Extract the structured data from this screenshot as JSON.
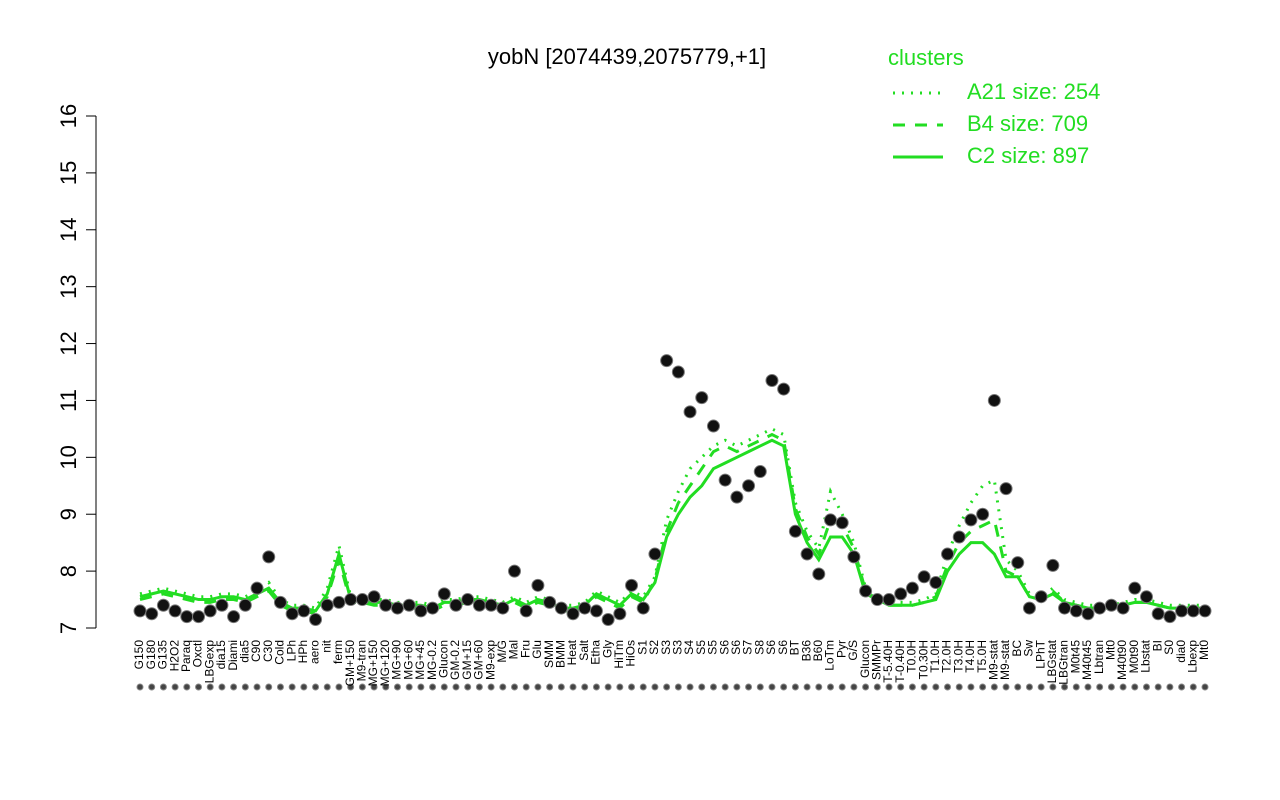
{
  "chart_data": {
    "type": "dotline",
    "title": "yobN [2074439,2075779,+1]",
    "legend_title": "clusters",
    "ylim": [
      7,
      16
    ],
    "yticks": [
      7,
      8,
      9,
      10,
      11,
      12,
      13,
      14,
      15,
      16
    ],
    "categories": [
      "G150",
      "G180",
      "G135",
      "H2O2",
      "Paraq",
      "Oxctl",
      "LBGexp",
      "dia15",
      "Diami",
      "dia5",
      "C90",
      "C30",
      "Cold",
      "LPh",
      "HPh",
      "aero",
      "nit",
      "ferm",
      "GM+150",
      "M9-tran",
      "MG+150",
      "MG+120",
      "MG+90",
      "MG+60",
      "MG+45",
      "MG-0.2",
      "Glucon",
      "GM-0.2",
      "GM+15",
      "GM+60",
      "M9-exp",
      "M/G",
      "Mal",
      "Fru",
      "Glu",
      "SMM",
      "BMM",
      "Heat",
      "Salt",
      "Etha",
      "Gly",
      "HiTm",
      "HiOs",
      "S1",
      "S2",
      "S3",
      "S3",
      "S4",
      "S5",
      "S5",
      "S6",
      "S6",
      "S7",
      "S8",
      "S6",
      "S6",
      "BT",
      "B36",
      "B60",
      "LoTm",
      "Pyr",
      "G/S",
      "Glucon",
      "SMMPr",
      "T-5.40H",
      "T-0.40H",
      "T0.0H",
      "T0.30H",
      "T1.0H",
      "T2.0H",
      "T3.0H",
      "T4.0H",
      "T5.0H",
      "M9-stat",
      "M9-stat",
      "BC",
      "Sw",
      "LPhT",
      "LBGstat",
      "LBGtran",
      "M0t45",
      "M40t45",
      "Lbtran",
      "Mt0",
      "M40t90",
      "M0t90",
      "Lbstat",
      "BI",
      "S0",
      "dia0",
      "Lbexp",
      "Mt0"
    ],
    "values": [
      7.3,
      7.25,
      7.4,
      7.3,
      7.2,
      7.2,
      7.3,
      7.4,
      7.2,
      7.4,
      7.7,
      8.25,
      7.45,
      7.25,
      7.3,
      7.15,
      7.4,
      7.45,
      7.5,
      7.5,
      7.55,
      7.4,
      7.35,
      7.4,
      7.3,
      7.35,
      7.6,
      7.4,
      7.5,
      7.4,
      7.4,
      7.35,
      8.0,
      7.3,
      7.75,
      7.45,
      7.35,
      7.25,
      7.35,
      7.3,
      7.15,
      7.25,
      7.75,
      7.35,
      8.3,
      11.7,
      11.5,
      10.8,
      11.05,
      10.55,
      9.6,
      9.3,
      9.5,
      9.75,
      11.35,
      11.2,
      8.7,
      8.3,
      7.95,
      8.9,
      8.85,
      8.25,
      7.65,
      7.5,
      7.5,
      7.6,
      7.7,
      7.9,
      7.8,
      8.3,
      8.6,
      8.9,
      9.0,
      11.0,
      9.45,
      8.15,
      7.35,
      7.55,
      8.1,
      7.35,
      7.3,
      7.25,
      7.35,
      7.4,
      7.35,
      7.7,
      7.55,
      7.25,
      7.2,
      7.3,
      7.3,
      7.3
    ],
    "point_color": "#111111",
    "series": [
      {
        "name": "A21 size: 254",
        "color": "#22dd22",
        "dash": "dotted",
        "values": [
          7.6,
          7.65,
          7.7,
          7.65,
          7.6,
          7.55,
          7.55,
          7.6,
          7.6,
          7.55,
          7.65,
          7.8,
          7.5,
          7.4,
          7.4,
          7.35,
          7.7,
          8.45,
          7.55,
          7.55,
          7.5,
          7.5,
          7.45,
          7.45,
          7.45,
          7.4,
          7.5,
          7.5,
          7.55,
          7.55,
          7.5,
          7.45,
          7.55,
          7.45,
          7.55,
          7.5,
          7.4,
          7.4,
          7.45,
          7.65,
          7.55,
          7.45,
          7.65,
          7.55,
          7.9,
          8.9,
          9.4,
          9.8,
          10.0,
          10.2,
          10.3,
          10.2,
          10.3,
          10.4,
          10.5,
          10.4,
          9.2,
          8.7,
          8.4,
          9.4,
          9.0,
          8.5,
          7.7,
          7.55,
          7.45,
          7.45,
          7.45,
          7.5,
          7.6,
          8.3,
          8.8,
          9.2,
          9.5,
          9.6,
          8.2,
          8.0,
          7.6,
          7.55,
          7.7,
          7.5,
          7.45,
          7.4,
          7.4,
          7.4,
          7.45,
          7.5,
          7.5,
          7.45,
          7.4,
          7.4,
          7.4,
          7.4
        ]
      },
      {
        "name": "B4 size: 709",
        "color": "#22dd22",
        "dash": "dashed",
        "values": [
          7.5,
          7.55,
          7.6,
          7.55,
          7.5,
          7.45,
          7.45,
          7.5,
          7.5,
          7.45,
          7.55,
          7.65,
          7.4,
          7.3,
          7.3,
          7.25,
          7.55,
          8.2,
          7.45,
          7.45,
          7.4,
          7.4,
          7.35,
          7.35,
          7.35,
          7.3,
          7.4,
          7.4,
          7.45,
          7.45,
          7.4,
          7.35,
          7.45,
          7.35,
          7.45,
          7.4,
          7.3,
          7.3,
          7.35,
          7.55,
          7.45,
          7.35,
          7.55,
          7.45,
          7.85,
          8.7,
          9.2,
          9.5,
          9.8,
          10.1,
          10.2,
          10.1,
          10.2,
          10.3,
          10.4,
          10.3,
          9.1,
          8.6,
          8.3,
          8.9,
          8.8,
          8.4,
          7.65,
          7.5,
          7.4,
          7.4,
          7.4,
          7.45,
          7.55,
          8.1,
          8.5,
          8.7,
          8.8,
          8.9,
          8.0,
          7.9,
          7.55,
          7.5,
          7.65,
          7.45,
          7.4,
          7.35,
          7.35,
          7.35,
          7.4,
          7.45,
          7.45,
          7.4,
          7.35,
          7.35,
          7.35,
          7.35
        ]
      },
      {
        "name": "C2 size: 897",
        "color": "#22dd22",
        "dash": "solid",
        "values": [
          7.55,
          7.6,
          7.65,
          7.6,
          7.55,
          7.5,
          7.5,
          7.55,
          7.55,
          7.5,
          7.6,
          7.7,
          7.45,
          7.35,
          7.35,
          7.3,
          7.6,
          8.3,
          7.5,
          7.5,
          7.45,
          7.45,
          7.4,
          7.4,
          7.4,
          7.35,
          7.45,
          7.45,
          7.5,
          7.5,
          7.45,
          7.4,
          7.5,
          7.4,
          7.5,
          7.45,
          7.35,
          7.35,
          7.4,
          7.6,
          7.5,
          7.4,
          7.6,
          7.5,
          7.8,
          8.6,
          9.0,
          9.3,
          9.5,
          9.8,
          9.9,
          10.0,
          10.1,
          10.2,
          10.3,
          10.2,
          9.0,
          8.5,
          8.2,
          8.6,
          8.6,
          8.3,
          7.6,
          7.5,
          7.4,
          7.4,
          7.4,
          7.45,
          7.5,
          8.0,
          8.3,
          8.5,
          8.5,
          8.3,
          7.9,
          7.9,
          7.55,
          7.5,
          7.6,
          7.45,
          7.4,
          7.35,
          7.35,
          7.35,
          7.4,
          7.45,
          7.45,
          7.4,
          7.35,
          7.35,
          7.35,
          7.35
        ]
      }
    ]
  }
}
